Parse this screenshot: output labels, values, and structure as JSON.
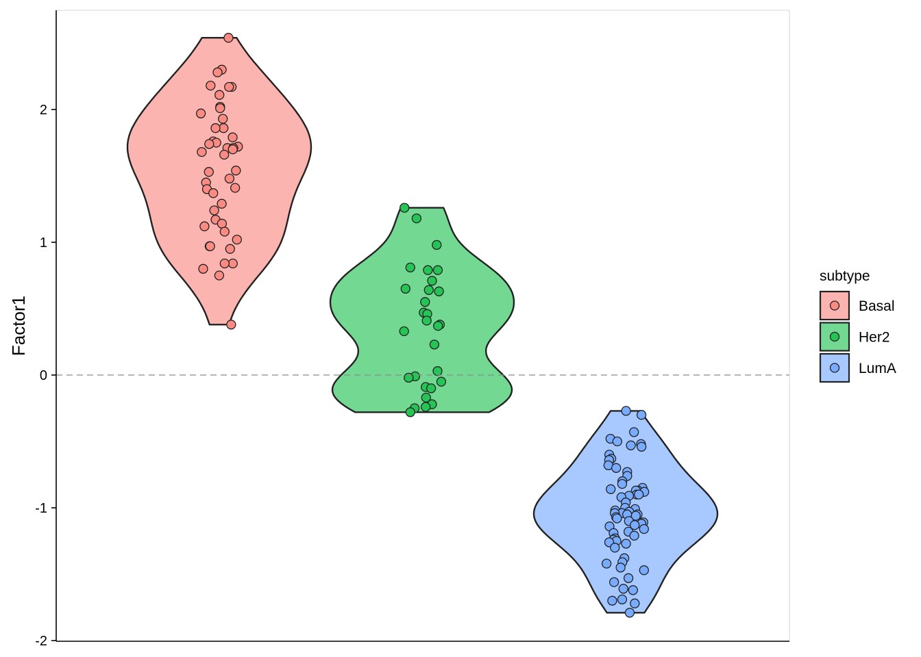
{
  "chart_data": {
    "type": "violin",
    "ylabel": "Factor1",
    "xlabel": "",
    "ylim": [
      -2,
      2.75
    ],
    "yticks": [
      -2,
      -1,
      0,
      1,
      2
    ],
    "ytick_labels": [
      "-2",
      "-1",
      "0",
      "1",
      "2"
    ],
    "reference_line": {
      "y": 0,
      "style": "dashed"
    },
    "legend": {
      "title": "subtype",
      "placement": "right"
    },
    "groups": [
      {
        "name": "Basal",
        "fill": "#F8766D",
        "range": [
          0.38,
          2.54
        ],
        "points": [
          2.54,
          2.3,
          2.28,
          2.18,
          2.17,
          2.17,
          2.11,
          2.02,
          2.01,
          1.97,
          1.93,
          1.86,
          1.86,
          1.79,
          1.76,
          1.75,
          1.74,
          1.72,
          1.71,
          1.71,
          1.7,
          1.68,
          1.66,
          1.54,
          1.53,
          1.48,
          1.45,
          1.41,
          1.4,
          1.37,
          1.29,
          1.24,
          1.17,
          1.14,
          1.12,
          1.08,
          1.02,
          0.97,
          0.97,
          0.95,
          0.84,
          0.84,
          0.8,
          0.75,
          0.38
        ]
      },
      {
        "name": "Her2",
        "fill": "#00BA38",
        "range": [
          -0.28,
          1.26
        ],
        "points": [
          1.26,
          1.18,
          0.98,
          0.81,
          0.79,
          0.79,
          0.71,
          0.65,
          0.64,
          0.63,
          0.55,
          0.47,
          0.46,
          0.41,
          0.38,
          0.37,
          0.33,
          0.23,
          0.03,
          -0.01,
          -0.02,
          -0.05,
          -0.09,
          -0.1,
          -0.17,
          -0.22,
          -0.24,
          -0.25,
          -0.28
        ]
      },
      {
        "name": "LumA",
        "fill": "#619CFF",
        "range": [
          -1.79,
          -0.27
        ],
        "points": [
          -0.27,
          -0.3,
          -0.43,
          -0.48,
          -0.5,
          -0.52,
          -0.53,
          -0.54,
          -0.6,
          -0.63,
          -0.64,
          -0.68,
          -0.7,
          -0.73,
          -0.76,
          -0.8,
          -0.82,
          -0.85,
          -0.86,
          -0.87,
          -0.87,
          -0.88,
          -0.9,
          -0.9,
          -0.91,
          -0.92,
          -0.96,
          -1.0,
          -1.01,
          -1.02,
          -1.03,
          -1.04,
          -1.04,
          -1.05,
          -1.05,
          -1.06,
          -1.07,
          -1.08,
          -1.1,
          -1.11,
          -1.12,
          -1.13,
          -1.14,
          -1.16,
          -1.18,
          -1.19,
          -1.21,
          -1.23,
          -1.24,
          -1.25,
          -1.26,
          -1.27,
          -1.3,
          -1.38,
          -1.41,
          -1.42,
          -1.45,
          -1.47,
          -1.53,
          -1.56,
          -1.61,
          -1.62,
          -1.69,
          -1.7,
          -1.72,
          -1.79
        ]
      }
    ]
  }
}
